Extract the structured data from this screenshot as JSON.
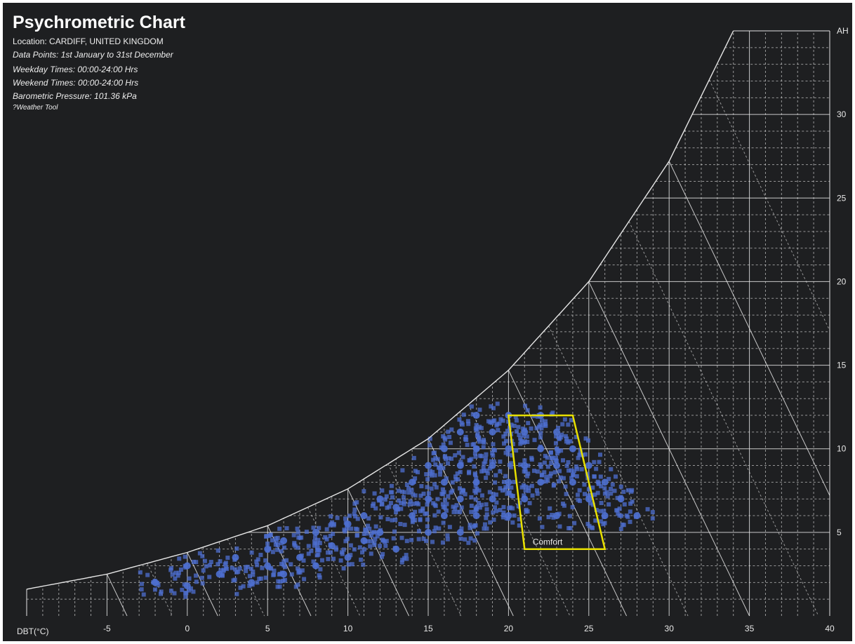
{
  "header": {
    "title": "Psychrometric Chart",
    "location": "Location: CARDIFF, UNITED KINGDOM",
    "data_points": "Data Points: 1st January to 31st December",
    "weekday_times": "Weekday Times: 00:00-24:00 Hrs",
    "weekend_times": "Weekend Times: 00:00-24:00 Hrs",
    "pressure": "Barometric Pressure: 101.36 kPa",
    "source": "?Weather Tool"
  },
  "colors": {
    "background": "#1e1f21",
    "grid": "#e6e6e6",
    "points": "#4d6fd0",
    "comfort": "#e8e000"
  },
  "chart_data": {
    "type": "scatter",
    "title": "Psychrometric Chart",
    "xlabel": "DBT(°C)",
    "ylabel": "AH",
    "xlim": [
      -10,
      40
    ],
    "ylim": [
      0,
      35
    ],
    "x_ticks": [
      -5,
      0,
      5,
      10,
      15,
      20,
      25,
      30,
      35,
      40
    ],
    "y_ticks": [
      5,
      10,
      15,
      20,
      25,
      30
    ],
    "saturation_curve": [
      [
        -10,
        1.6
      ],
      [
        -5,
        2.5
      ],
      [
        0,
        3.8
      ],
      [
        5,
        5.4
      ],
      [
        10,
        7.6
      ],
      [
        15,
        10.6
      ],
      [
        20,
        14.7
      ],
      [
        25,
        20.0
      ],
      [
        30,
        27.2
      ],
      [
        34,
        35.0
      ]
    ],
    "comfort_zone": {
      "label": "Comfort",
      "polygon": [
        [
          20,
          12
        ],
        [
          24,
          12
        ],
        [
          26,
          4
        ],
        [
          21,
          4
        ]
      ]
    },
    "series": [
      {
        "values": [
          [
            -2,
            2
          ],
          [
            0,
            1.8
          ],
          [
            0,
            3
          ],
          [
            2,
            2.5
          ],
          [
            3,
            3.5
          ],
          [
            4,
            2
          ],
          [
            5,
            4
          ],
          [
            5,
            3
          ],
          [
            6,
            2.5
          ],
          [
            6,
            4.5
          ],
          [
            7,
            3.5
          ],
          [
            8,
            5
          ],
          [
            8,
            3
          ],
          [
            9,
            4.2
          ],
          [
            10,
            5.5
          ],
          [
            10,
            3.5
          ],
          [
            11,
            6
          ],
          [
            11,
            4.5
          ],
          [
            12,
            7
          ],
          [
            12,
            5
          ],
          [
            13,
            6.5
          ],
          [
            13,
            4
          ],
          [
            14,
            8
          ],
          [
            14,
            6
          ],
          [
            15,
            9
          ],
          [
            15,
            7
          ],
          [
            15,
            5
          ],
          [
            16,
            10
          ],
          [
            16,
            8
          ],
          [
            16,
            6
          ],
          [
            17,
            11
          ],
          [
            17,
            9
          ],
          [
            17,
            7
          ],
          [
            17,
            5
          ],
          [
            18,
            12
          ],
          [
            18,
            10
          ],
          [
            18,
            8
          ],
          [
            18,
            6
          ],
          [
            19,
            11
          ],
          [
            19,
            9
          ],
          [
            19,
            7
          ],
          [
            20,
            12
          ],
          [
            20,
            10
          ],
          [
            20,
            8
          ],
          [
            20,
            6
          ],
          [
            21,
            11
          ],
          [
            21,
            9
          ],
          [
            21,
            7
          ],
          [
            22,
            12
          ],
          [
            22,
            10
          ],
          [
            22,
            8
          ],
          [
            23,
            11
          ],
          [
            23,
            9
          ],
          [
            23,
            6
          ],
          [
            24,
            10
          ],
          [
            24,
            8
          ],
          [
            25,
            9
          ],
          [
            25,
            7
          ],
          [
            26,
            8
          ],
          [
            26,
            6
          ],
          [
            27,
            7
          ],
          [
            28,
            6
          ]
        ]
      }
    ]
  }
}
